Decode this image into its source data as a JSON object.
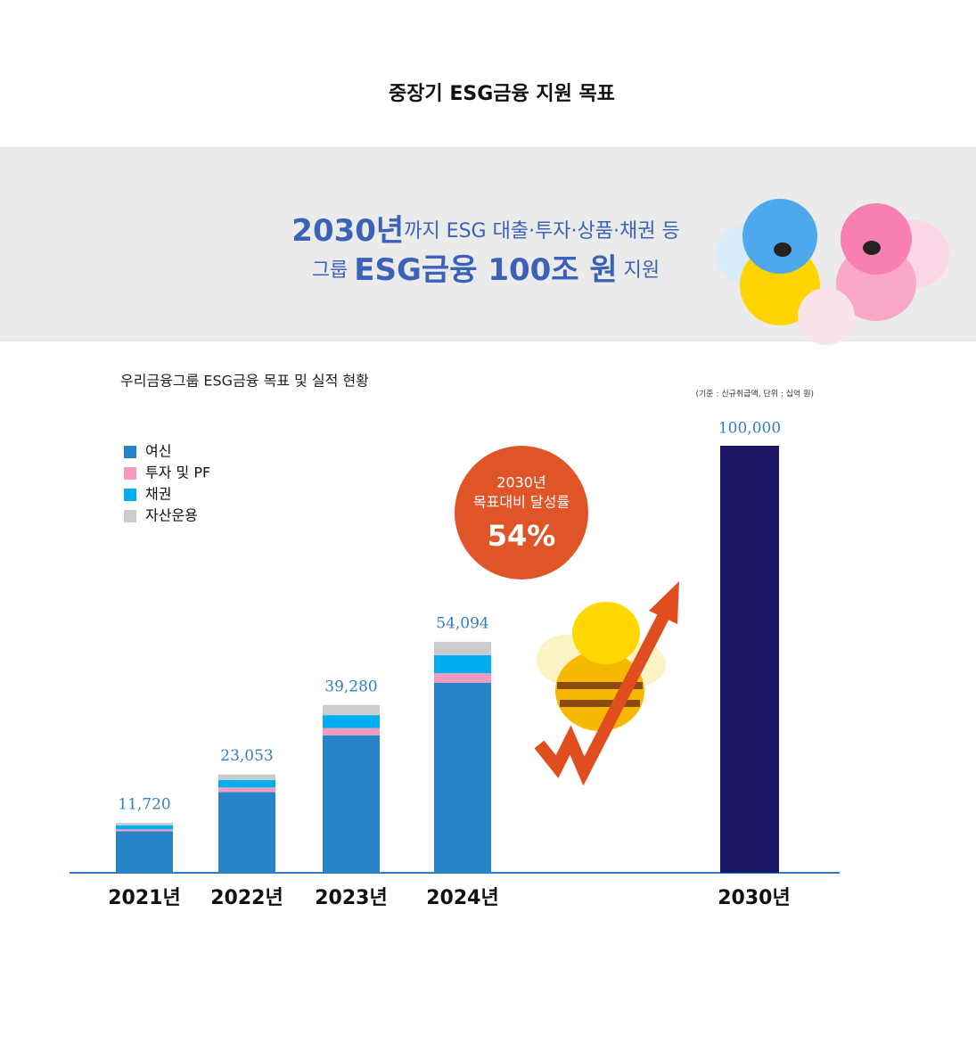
{
  "title": "중장기 ESG금융 지원 목표",
  "banner": {
    "line1": [
      "2030년",
      "까지 ESG 대출·투자·상품·채권 등"
    ],
    "line2": [
      "그룹 ",
      "ESG금융 100조 원",
      " 지원"
    ]
  },
  "badge": {
    "line1": "2030년",
    "line2": "목표대비 달성률",
    "rate": "54%"
  },
  "chart_data": {
    "type": "stacked_bar",
    "title": "우리금융그룹 ESG금융 목표 및 실적 현황",
    "note": "(기준 : 신규취급액, 단위 : 십억 원)",
    "categories": [
      "2021년",
      "2022년",
      "2023년",
      "2024년"
    ],
    "series": [
      {
        "name": "여신",
        "color": "#2784c8",
        "values": [
          9730,
          18920,
          32200,
          44520
        ]
      },
      {
        "name": "투자 및 PF",
        "color": "#f49ac1",
        "values": [
          470,
          1070,
          1690,
          2210
        ]
      },
      {
        "name": "채권",
        "color": "#00aeef",
        "values": [
          940,
          1730,
          3030,
          4230
        ]
      },
      {
        "name": "자산운용",
        "color": "#cccccc",
        "values": [
          580,
          1333,
          2360,
          3134
        ]
      }
    ],
    "totals": [
      11720,
      23053,
      39280,
      54094
    ],
    "total_labels": [
      "11,720",
      "23,053",
      "39,280",
      "54,094"
    ],
    "target": {
      "category": "2030년",
      "value": 100000,
      "value_label": "100,000",
      "color": "#1c1464"
    },
    "ylim": [
      0,
      100000
    ]
  }
}
